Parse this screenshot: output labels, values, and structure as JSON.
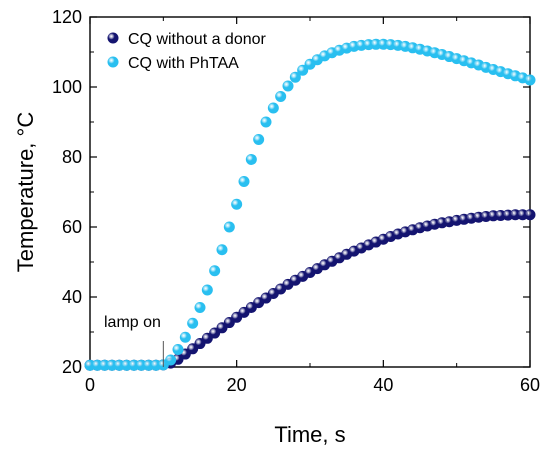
{
  "chart_data": {
    "type": "scatter",
    "xlabel": "Time, s",
    "ylabel": "Temperature, °C",
    "xlim": [
      0,
      60
    ],
    "ylim": [
      20,
      120
    ],
    "xticks": [
      0,
      20,
      40,
      60
    ],
    "yticks": [
      20,
      40,
      60,
      80,
      100,
      120
    ],
    "x_minor_ticks": [
      10,
      30,
      50
    ],
    "y_minor_ticks": [
      30,
      50,
      70,
      90,
      110
    ],
    "grid": false,
    "legend_position": "top-left",
    "annotation": {
      "text": "lamp on",
      "x": 10,
      "y_from": 20,
      "y_to": 24
    },
    "series": [
      {
        "name": "CQ without a donor",
        "color": "#141470",
        "x": [
          0,
          1,
          2,
          3,
          4,
          5,
          6,
          7,
          8,
          9,
          10,
          11,
          12,
          13,
          14,
          15,
          16,
          17,
          18,
          19,
          20,
          21,
          22,
          23,
          24,
          25,
          26,
          27,
          28,
          29,
          30,
          31,
          32,
          33,
          34,
          35,
          36,
          37,
          38,
          39,
          40,
          41,
          42,
          43,
          44,
          45,
          46,
          47,
          48,
          49,
          50,
          51,
          52,
          53,
          54,
          55,
          56,
          57,
          58,
          59,
          60
        ],
        "y": [
          20.5,
          20.5,
          20.5,
          20.5,
          20.5,
          20.5,
          20.5,
          20.5,
          20.5,
          20.5,
          20.6,
          21.1,
          22.2,
          23.7,
          25.2,
          26.7,
          28.2,
          29.7,
          31.2,
          32.7,
          34.2,
          35.6,
          37.0,
          38.4,
          39.7,
          41.0,
          42.3,
          43.6,
          44.8,
          45.9,
          47.0,
          48.1,
          49.2,
          50.2,
          51.2,
          52.2,
          53.1,
          54.0,
          54.9,
          55.7,
          56.5,
          57.3,
          58.0,
          58.6,
          59.2,
          59.8,
          60.3,
          60.8,
          61.2,
          61.5,
          61.9,
          62.2,
          62.5,
          62.8,
          63.0,
          63.2,
          63.3,
          63.4,
          63.5,
          63.5,
          63.5
        ]
      },
      {
        "name": "CQ with PhTAA",
        "color": "#29bff0",
        "x": [
          0,
          1,
          2,
          3,
          4,
          5,
          6,
          7,
          8,
          9,
          10,
          11,
          12,
          13,
          14,
          15,
          16,
          17,
          18,
          19,
          20,
          21,
          22,
          23,
          24,
          25,
          26,
          27,
          28,
          29,
          30,
          31,
          32,
          33,
          34,
          35,
          36,
          37,
          38,
          39,
          40,
          41,
          42,
          43,
          44,
          45,
          46,
          47,
          48,
          49,
          50,
          51,
          52,
          53,
          54,
          55,
          56,
          57,
          58,
          59,
          60
        ],
        "y": [
          20.5,
          20.5,
          20.5,
          20.5,
          20.5,
          20.5,
          20.5,
          20.5,
          20.5,
          20.5,
          20.6,
          22.0,
          25.0,
          28.5,
          32.5,
          37.0,
          42.0,
          47.5,
          53.5,
          60.0,
          66.5,
          73.0,
          79.3,
          85.0,
          90.0,
          94.0,
          97.3,
          100.3,
          102.8,
          104.8,
          106.5,
          107.8,
          108.9,
          109.8,
          110.5,
          111.1,
          111.6,
          111.9,
          112.1,
          112.2,
          112.2,
          112.1,
          111.9,
          111.6,
          111.2,
          110.8,
          110.3,
          109.8,
          109.3,
          108.7,
          108.1,
          107.5,
          106.9,
          106.3,
          105.6,
          105.0,
          104.4,
          103.8,
          103.2,
          102.6,
          102.0
        ]
      }
    ]
  }
}
